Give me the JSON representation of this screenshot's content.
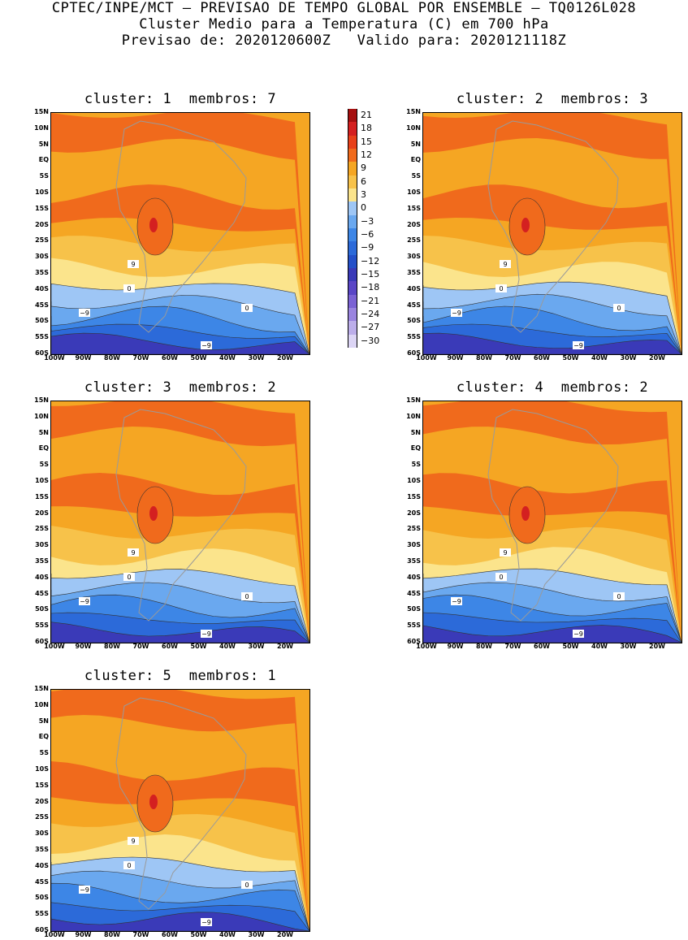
{
  "header": {
    "line1": "CPTEC/INPE/MCT — PREVISAO DE TEMPO GLOBAL POR ENSEMBLE — TQ0126L028",
    "line2": "Cluster Medio para a Temperatura (C) em 700 hPa",
    "line3": "Previsao de: 2020120600Z   Valido para: 2020121118Z"
  },
  "panels": [
    {
      "title": "cluster: 1  membros: 7"
    },
    {
      "title": "cluster: 2  membros: 3"
    },
    {
      "title": "cluster: 3  membros: 2"
    },
    {
      "title": "cluster: 4  membros: 2"
    },
    {
      "title": "cluster: 5  membros: 1"
    }
  ],
  "axes": {
    "lat_labels": [
      "15N",
      "10N",
      "5N",
      "EQ",
      "5S",
      "10S",
      "15S",
      "20S",
      "25S",
      "30S",
      "35S",
      "40S",
      "45S",
      "50S",
      "55S",
      "60S"
    ],
    "lon_labels": [
      "100W",
      "90W",
      "80W",
      "70W",
      "60W",
      "50W",
      "40W",
      "30W",
      "20W"
    ]
  },
  "colorbar": {
    "labels": [
      "21",
      "18",
      "15",
      "12",
      "9",
      "6",
      "3",
      "0",
      "−3",
      "−6",
      "−9",
      "−12",
      "−15",
      "−18",
      "−21",
      "−24",
      "−27",
      "−30"
    ],
    "colors": [
      "#a50f0f",
      "#d42020",
      "#e8411a",
      "#f06a1c",
      "#f5a623",
      "#f7c24a",
      "#fbe48c",
      "#9ec6f5",
      "#6aa8ef",
      "#3d86e6",
      "#2c6ad9",
      "#2450c9",
      "#3a3ab8",
      "#5a46c6",
      "#7b62d4",
      "#9a84df",
      "#bcaeea",
      "#dcd5f5"
    ]
  },
  "contour_labels": {
    "pos": "9",
    "zero": "0",
    "neg": "−9"
  }
}
